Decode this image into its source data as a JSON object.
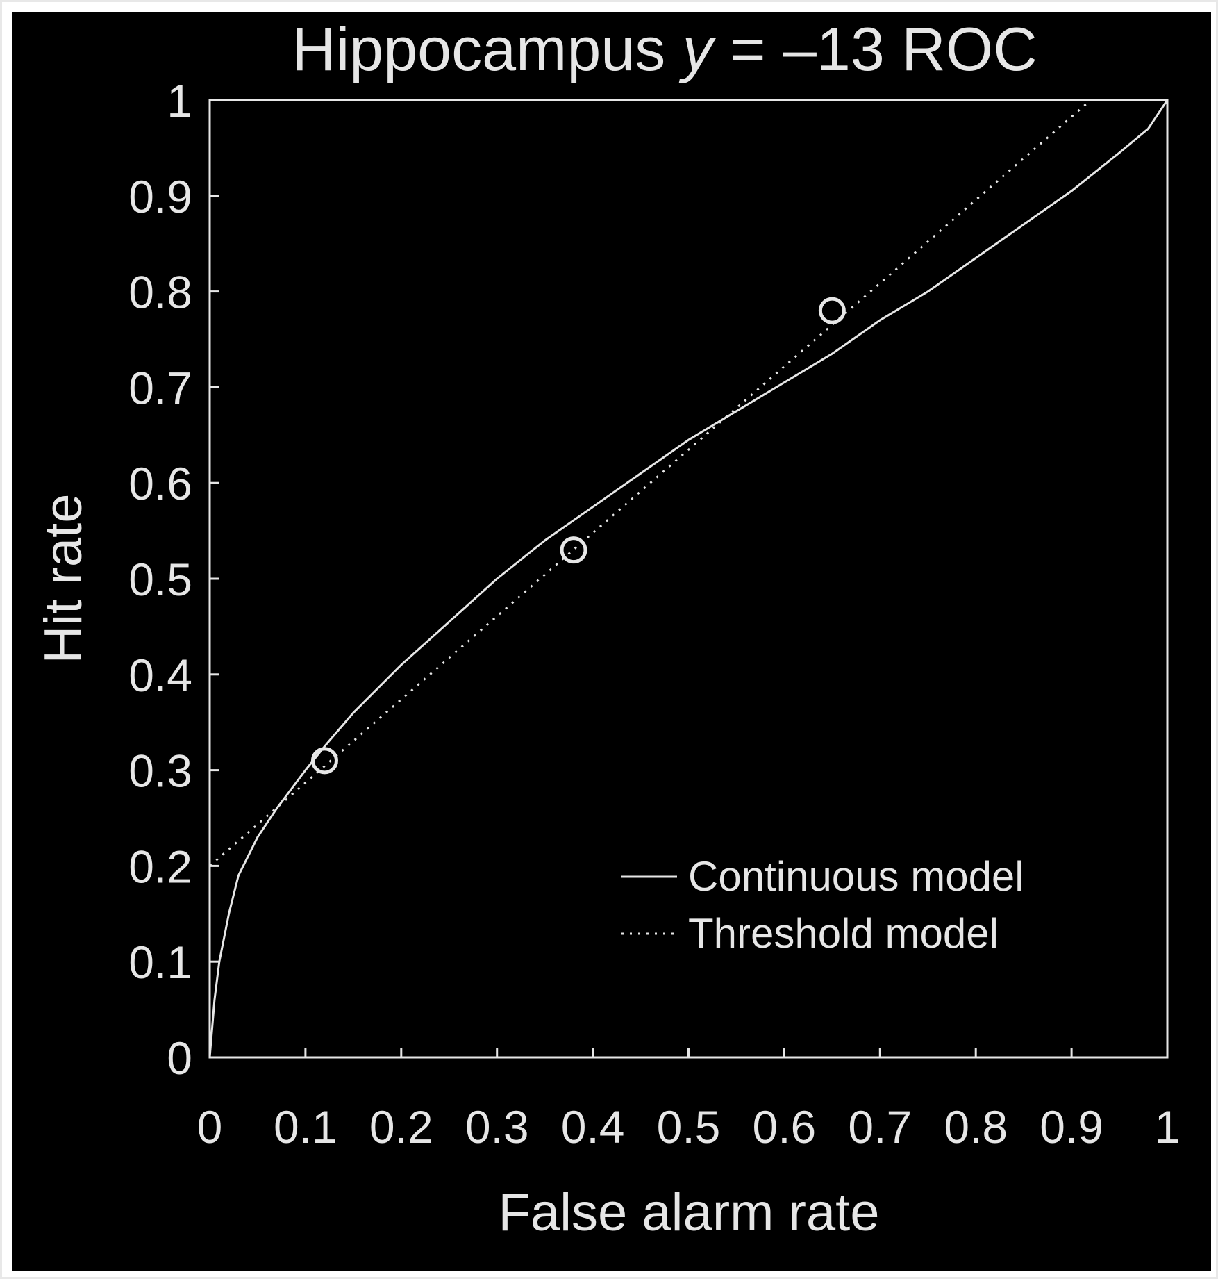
{
  "colors": {
    "background": "#000000",
    "foreground": "#e6e6e6",
    "outer_border": "#ffffff"
  },
  "chart_data": {
    "type": "line",
    "title": {
      "before": "Hippocampus ",
      "italic": "y",
      "after": " = –13 ROC"
    },
    "xlabel": "False alarm rate",
    "ylabel": "Hit rate",
    "xlim": [
      0,
      1
    ],
    "ylim": [
      0,
      1
    ],
    "xticks": [
      0,
      0.1,
      0.2,
      0.3,
      0.4,
      0.5,
      0.6,
      0.7,
      0.8,
      0.9,
      1
    ],
    "xtick_labels": [
      "0",
      "0.1",
      "0.2",
      "0.3",
      "0.4",
      "0.5",
      "0.6",
      "0.7",
      "0.8",
      "0.9",
      "1"
    ],
    "yticks": [
      0,
      0.1,
      0.2,
      0.3,
      0.4,
      0.5,
      0.6,
      0.7,
      0.8,
      0.9,
      1
    ],
    "ytick_labels": [
      "0",
      "0.1",
      "0.2",
      "0.3",
      "0.4",
      "0.5",
      "0.6",
      "0.7",
      "0.8",
      "0.9",
      "1"
    ],
    "grid": false,
    "legend_position": "bottom-right",
    "observed_points": {
      "marker": "open-circle",
      "x": [
        0.12,
        0.38,
        0.65
      ],
      "y": [
        0.31,
        0.53,
        0.78
      ]
    },
    "series": [
      {
        "name": "Continuous model",
        "style": "solid",
        "x": [
          0,
          0.005,
          0.01,
          0.02,
          0.03,
          0.05,
          0.07,
          0.1,
          0.12,
          0.15,
          0.2,
          0.25,
          0.3,
          0.35,
          0.4,
          0.45,
          0.5,
          0.55,
          0.6,
          0.65,
          0.7,
          0.75,
          0.8,
          0.85,
          0.9,
          0.95,
          0.98,
          1
        ],
        "y": [
          0,
          0.06,
          0.1,
          0.15,
          0.19,
          0.23,
          0.26,
          0.3,
          0.325,
          0.36,
          0.41,
          0.455,
          0.5,
          0.54,
          0.575,
          0.61,
          0.645,
          0.675,
          0.705,
          0.735,
          0.77,
          0.8,
          0.835,
          0.87,
          0.905,
          0.945,
          0.97,
          1
        ]
      },
      {
        "name": "Threshold model",
        "style": "dotted",
        "x": [
          0,
          0,
          0.92
        ],
        "y": [
          0,
          0.2,
          1
        ]
      }
    ]
  }
}
